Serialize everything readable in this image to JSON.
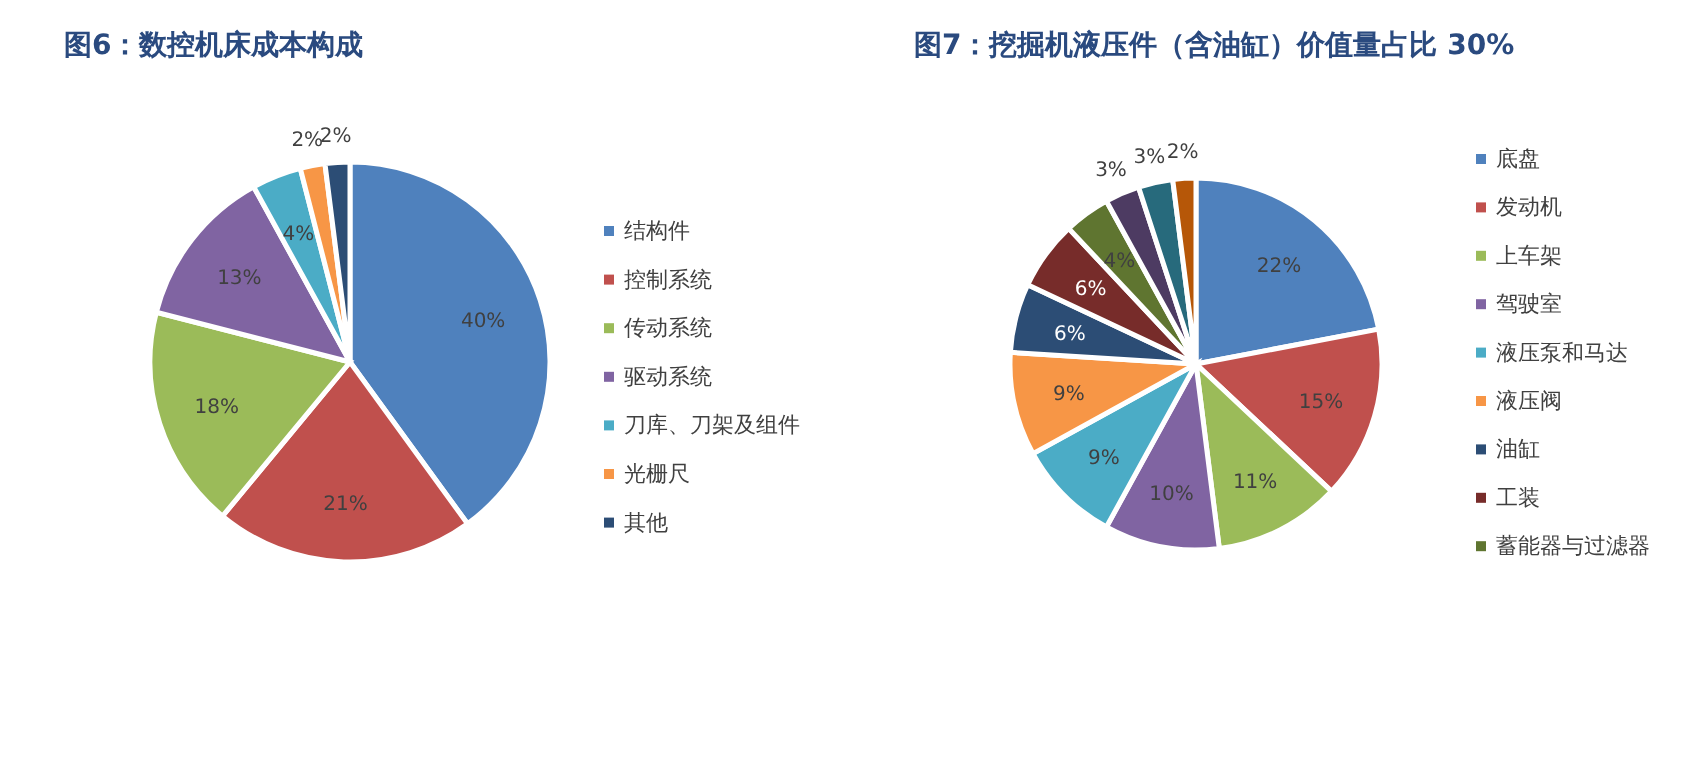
{
  "chart_data": [
    {
      "type": "pie",
      "title": "图6：数控机床成本构成",
      "categories": [
        "结构件",
        "控制系统",
        "传动系统",
        "驱动系统",
        "刀库、刀架及组件",
        "光栅尺",
        "其他"
      ],
      "values": [
        40,
        21,
        18,
        13,
        4,
        2,
        2
      ],
      "colors": [
        "#4f81bd",
        "#c0504d",
        "#9bbb59",
        "#8064a2",
        "#4bacc6",
        "#f79646",
        "#2c4d75"
      ],
      "value_labels": [
        "40%",
        "21%",
        "18%",
        "13%",
        "4%",
        "2%",
        "2%"
      ],
      "legend": "right"
    },
    {
      "type": "pie",
      "title": "图7：挖掘机液压件（含油缸）价值量占比 30%",
      "categories": [
        "底盘",
        "发动机",
        "上车架",
        "驾驶室",
        "液压泵和马达",
        "液压阀",
        "油缸",
        "工装",
        "蓄能器与过滤器",
        null,
        null,
        null
      ],
      "values": [
        22,
        15,
        11,
        10,
        9,
        9,
        6,
        6,
        4,
        3,
        3,
        2
      ],
      "colors": [
        "#4f81bd",
        "#c0504d",
        "#9bbb59",
        "#8064a2",
        "#4bacc6",
        "#f79646",
        "#2c4d75",
        "#772c2a",
        "#5f7530",
        "#4d3b62",
        "#276a7c",
        "#b65708"
      ],
      "value_labels": [
        "22%",
        "15%",
        "11%",
        "10%",
        "9%",
        "9%",
        "6%",
        "6%",
        "4%",
        "3%",
        "3%",
        "2%"
      ],
      "legend": "right"
    }
  ]
}
